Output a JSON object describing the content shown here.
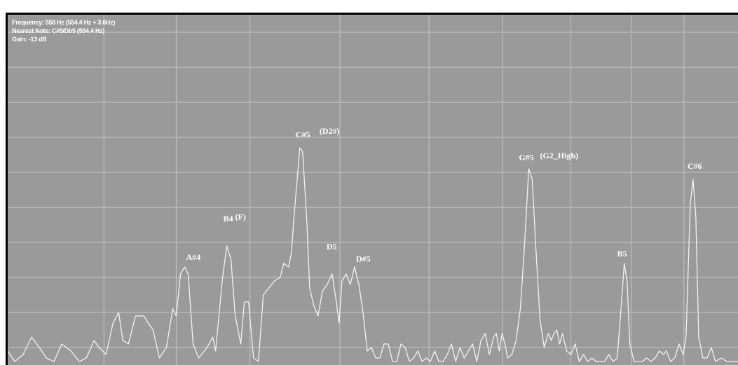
{
  "info": {
    "frequency": "Frequency: 558 Hz (554.4 Hz + 3.6Hz)",
    "nearest_note": "Nearest Note: C#5/Db5 (554.4 Hz)",
    "gain": "Gain: -13 dB"
  },
  "colors": {
    "background": "#9a9a9a",
    "grid": "#c4c4c4",
    "line": "#f2f2f2",
    "text": "#ffffff",
    "border": "#000000"
  },
  "chart_data": {
    "type": "line",
    "grid": true,
    "ylim": [
      0,
      10
    ],
    "xlim": [
      0,
      1040
    ],
    "series": [
      {
        "values": [
          [
            0,
            0.4
          ],
          [
            10,
            0.1
          ],
          [
            22,
            0.3
          ],
          [
            34,
            0.8
          ],
          [
            45,
            0.5
          ],
          [
            55,
            0.2
          ],
          [
            66,
            0.1
          ],
          [
            77,
            0.6
          ],
          [
            90,
            0.4
          ],
          [
            102,
            0.1
          ],
          [
            112,
            0.2
          ],
          [
            123,
            0.7
          ],
          [
            130,
            0.5
          ],
          [
            140,
            0.3
          ],
          [
            150,
            1.2
          ],
          [
            158,
            1.5
          ],
          [
            164,
            0.7
          ],
          [
            172,
            0.6
          ],
          [
            182,
            1.4
          ],
          [
            194,
            1.4
          ],
          [
            200,
            1.2
          ],
          [
            207,
            1.0
          ],
          [
            216,
            0.2
          ],
          [
            226,
            0.5
          ],
          [
            235,
            1.6
          ],
          [
            240,
            1.4
          ],
          [
            246,
            2.6
          ],
          [
            252,
            2.8
          ],
          [
            257,
            2.6
          ],
          [
            264,
            0.6
          ],
          [
            272,
            0.2
          ],
          [
            284,
            0.5
          ],
          [
            292,
            0.8
          ],
          [
            296,
            0.4
          ],
          [
            306,
            2.5
          ],
          [
            312,
            3.4
          ],
          [
            318,
            3.0
          ],
          [
            324,
            1.4
          ],
          [
            332,
            0.6
          ],
          [
            337,
            1.8
          ],
          [
            343,
            1.8
          ],
          [
            350,
            0.2
          ],
          [
            357,
            0.1
          ],
          [
            364,
            2.0
          ],
          [
            372,
            2.2
          ],
          [
            380,
            2.4
          ],
          [
            388,
            2.5
          ],
          [
            393,
            2.9
          ],
          [
            400,
            2.8
          ],
          [
            404,
            3.2
          ],
          [
            408,
            4.3
          ],
          [
            416,
            6.2
          ],
          [
            420,
            6.1
          ],
          [
            426,
            4.1
          ],
          [
            430,
            2.2
          ],
          [
            436,
            1.7
          ],
          [
            442,
            1.4
          ],
          [
            448,
            2.1
          ],
          [
            455,
            2.3
          ],
          [
            462,
            2.6
          ],
          [
            468,
            1.8
          ],
          [
            472,
            1.2
          ],
          [
            476,
            2.4
          ],
          [
            482,
            2.6
          ],
          [
            488,
            2.3
          ],
          [
            494,
            2.8
          ],
          [
            500,
            2.3
          ],
          [
            506,
            1.5
          ],
          [
            512,
            0.4
          ],
          [
            518,
            0.5
          ],
          [
            524,
            0.2
          ],
          [
            530,
            0.2
          ],
          [
            536,
            0.6
          ],
          [
            542,
            0.6
          ],
          [
            548,
            0.1
          ],
          [
            554,
            0.1
          ],
          [
            560,
            0.6
          ],
          [
            566,
            0.5
          ],
          [
            572,
            0.1
          ],
          [
            578,
            0.2
          ],
          [
            584,
            0.4
          ],
          [
            590,
            0.1
          ],
          [
            596,
            0.2
          ],
          [
            602,
            0.1
          ],
          [
            608,
            0.4
          ],
          [
            614,
            0.1
          ],
          [
            620,
            0.1
          ],
          [
            626,
            0.3
          ],
          [
            632,
            0.6
          ],
          [
            638,
            0.1
          ],
          [
            644,
            0.5
          ],
          [
            650,
            0.2
          ],
          [
            656,
            0.4
          ],
          [
            662,
            0.6
          ],
          [
            668,
            0.1
          ],
          [
            674,
            0.7
          ],
          [
            680,
            0.9
          ],
          [
            686,
            0.3
          ],
          [
            692,
            0.8
          ],
          [
            696,
            0.9
          ],
          [
            700,
            0.4
          ],
          [
            704,
            0.9
          ],
          [
            708,
            0.6
          ],
          [
            712,
            0.2
          ],
          [
            718,
            0.3
          ],
          [
            724,
            0.7
          ],
          [
            730,
            1.6
          ],
          [
            736,
            3.4
          ],
          [
            742,
            5.6
          ],
          [
            747,
            5.3
          ],
          [
            752,
            3.4
          ],
          [
            758,
            1.3
          ],
          [
            764,
            0.5
          ],
          [
            770,
            0.9
          ],
          [
            774,
            0.7
          ],
          [
            778,
            0.9
          ],
          [
            782,
            1.0
          ],
          [
            786,
            0.6
          ],
          [
            790,
            0.9
          ],
          [
            796,
            0.4
          ],
          [
            802,
            0.3
          ],
          [
            808,
            0.6
          ],
          [
            814,
            0.1
          ],
          [
            820,
            0.3
          ],
          [
            826,
            0.1
          ],
          [
            832,
            0.2
          ],
          [
            838,
            0.1
          ],
          [
            844,
            0.1
          ],
          [
            850,
            0.1
          ],
          [
            856,
            0.3
          ],
          [
            862,
            0.1
          ],
          [
            868,
            0.2
          ],
          [
            873,
            1.5
          ],
          [
            878,
            2.9
          ],
          [
            882,
            2.4
          ],
          [
            886,
            0.6
          ],
          [
            892,
            0.1
          ],
          [
            898,
            0.1
          ],
          [
            904,
            0.1
          ],
          [
            910,
            0.2
          ],
          [
            916,
            0.1
          ],
          [
            922,
            0.2
          ],
          [
            928,
            0.4
          ],
          [
            934,
            0.3
          ],
          [
            938,
            0.4
          ],
          [
            944,
            0.1
          ],
          [
            950,
            0.2
          ],
          [
            956,
            0.6
          ],
          [
            962,
            0.3
          ],
          [
            966,
            0.8
          ],
          [
            972,
            4.6
          ],
          [
            976,
            5.3
          ],
          [
            980,
            4.2
          ],
          [
            984,
            0.8
          ],
          [
            990,
            0.2
          ],
          [
            996,
            0.2
          ],
          [
            1002,
            0.5
          ],
          [
            1008,
            0.1
          ],
          [
            1016,
            0.2
          ],
          [
            1024,
            0.1
          ],
          [
            1032,
            0.1
          ],
          [
            1040,
            0.1
          ]
        ]
      }
    ],
    "annotations": [
      {
        "text": "A#4",
        "x": 254,
        "y": 3.0
      },
      {
        "text": "B4",
        "x": 307,
        "y": 4.1
      },
      {
        "text": "(F)",
        "x": 324,
        "y": 4.15
      },
      {
        "text": "C#5",
        "x": 410,
        "y": 6.5
      },
      {
        "text": "(D2#)",
        "x": 444,
        "y": 6.6
      },
      {
        "text": "D5",
        "x": 454,
        "y": 3.3
      },
      {
        "text": "D#5",
        "x": 496,
        "y": 2.95
      },
      {
        "text": "G#5",
        "x": 728,
        "y": 5.85
      },
      {
        "text": "(G2_High)",
        "x": 758,
        "y": 5.9
      },
      {
        "text": "B5",
        "x": 868,
        "y": 3.1
      },
      {
        "text": "C#6",
        "x": 968,
        "y": 5.6
      }
    ],
    "v_grid": [
      137,
      240,
      345,
      473,
      600,
      705,
      802,
      888,
      963
    ],
    "h_grid": [
      0.5,
      1.5,
      2.5,
      3.5,
      4.5,
      5.5,
      6.5,
      7.5,
      8.5,
      9.5
    ]
  }
}
